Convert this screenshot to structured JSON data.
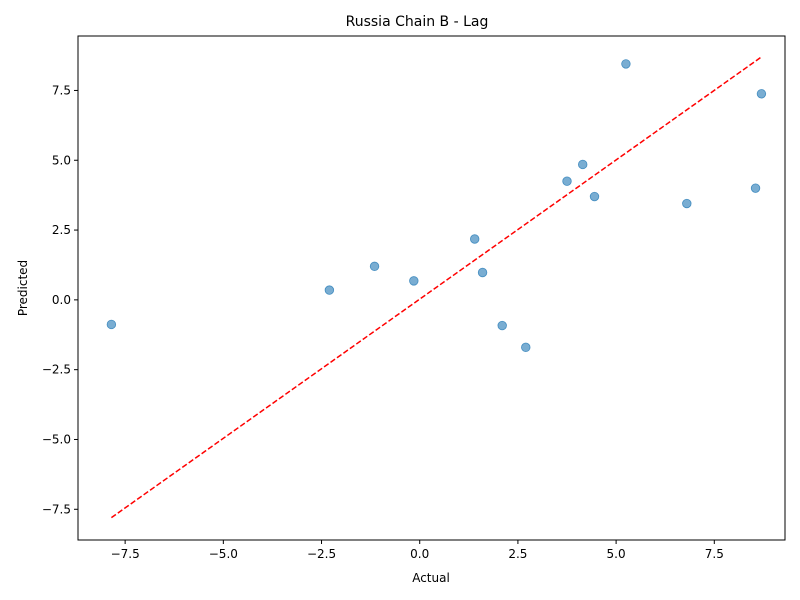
{
  "chart_data": {
    "type": "scatter",
    "title": "Russia Chain B - Lag",
    "xlabel": "Actual",
    "ylabel": "Predicted",
    "xlim": [
      -8.7,
      9.3
    ],
    "ylim": [
      -8.6,
      9.45
    ],
    "xticks": [
      -7.5,
      -5.0,
      -2.5,
      0.0,
      2.5,
      5.0,
      7.5
    ],
    "yticks": [
      -7.5,
      -5.0,
      -2.5,
      0.0,
      2.5,
      5.0,
      7.5
    ],
    "xtick_labels": [
      "−7.5",
      "−5.0",
      "−2.5",
      "0.0",
      "2.5",
      "5.0",
      "7.5"
    ],
    "ytick_labels": [
      "−7.5",
      "−5.0",
      "−2.5",
      "0.0",
      "2.5",
      "5.0",
      "7.5"
    ],
    "grid": false,
    "point_color": "#1f77b4",
    "line_color": "#ff0000",
    "reference_line": {
      "style": "dashed",
      "x": [
        -7.85,
        8.7
      ],
      "y": [
        -7.8,
        8.7
      ]
    },
    "points": [
      {
        "x": -7.85,
        "y": -0.88
      },
      {
        "x": -2.3,
        "y": 0.35
      },
      {
        "x": -1.15,
        "y": 1.2
      },
      {
        "x": -0.15,
        "y": 0.68
      },
      {
        "x": 1.4,
        "y": 2.18
      },
      {
        "x": 1.6,
        "y": 0.98
      },
      {
        "x": 2.1,
        "y": -0.92
      },
      {
        "x": 2.7,
        "y": -1.7
      },
      {
        "x": 3.75,
        "y": 4.25
      },
      {
        "x": 4.15,
        "y": 4.85
      },
      {
        "x": 4.45,
        "y": 3.7
      },
      {
        "x": 5.25,
        "y": 8.45
      },
      {
        "x": 6.8,
        "y": 3.45
      },
      {
        "x": 8.55,
        "y": 4.0
      },
      {
        "x": 8.7,
        "y": 7.38
      }
    ]
  }
}
